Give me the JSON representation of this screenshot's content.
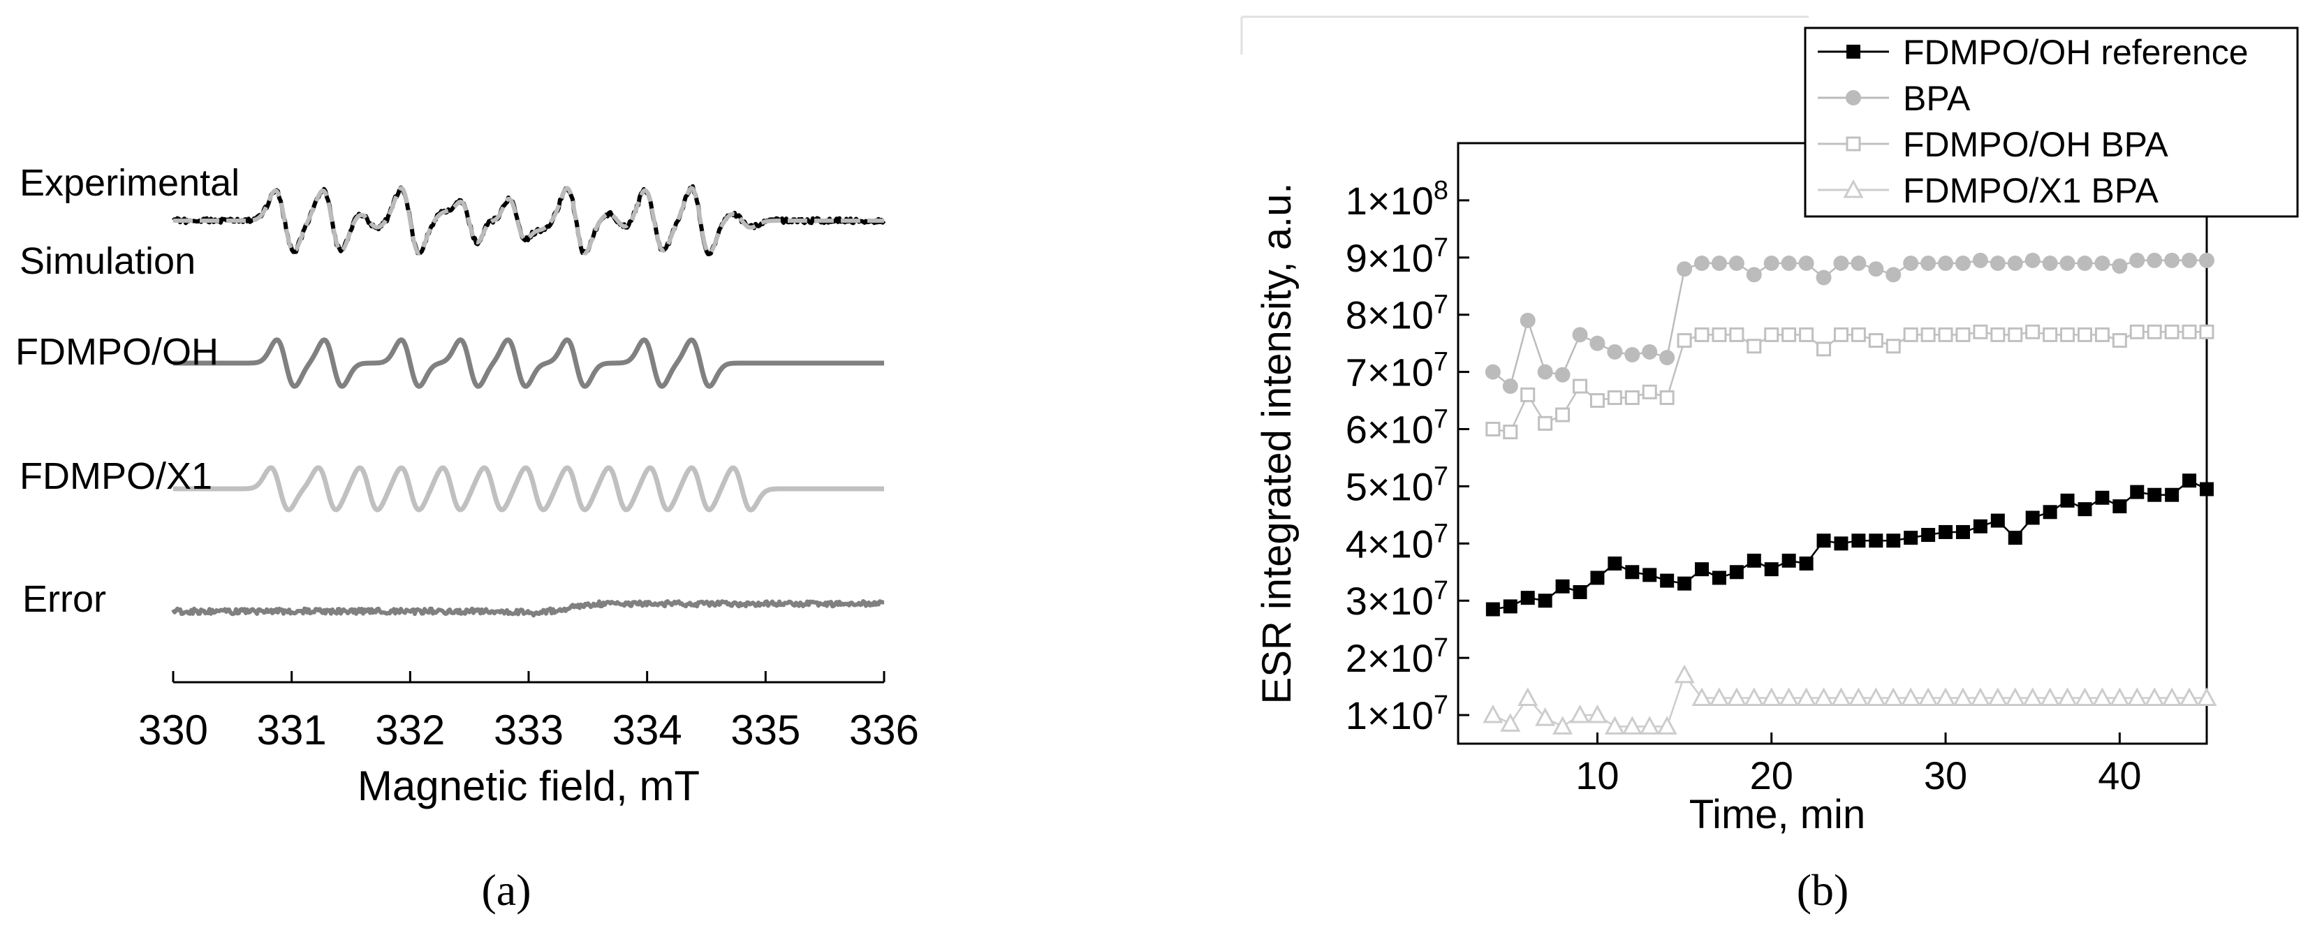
{
  "chart_data": [
    {
      "panel_label": "(a)",
      "type": "line",
      "xlabel": "Magnetic field, mT",
      "ylabel": "",
      "xlim": [
        330,
        336
      ],
      "x_ticks": [
        330,
        331,
        332,
        333,
        334,
        335,
        336
      ],
      "grid": false,
      "legend": "none",
      "series": [
        {
          "name": "Experimental",
          "color": "#000000",
          "style": "solid",
          "offset_rank": 1
        },
        {
          "name": "Simulation",
          "color": "#bbbbbb",
          "style": "dashed",
          "offset_rank": 1
        },
        {
          "name": "FDMPO/OH",
          "color": "#808080",
          "style": "solid",
          "offset_rank": 2
        },
        {
          "name": "FDMPO/X1",
          "color": "#c0c0c0",
          "style": "solid",
          "offset_rank": 3
        },
        {
          "name": "Error",
          "color": "#808080",
          "style": "solid",
          "offset_rank": 4
        }
      ],
      "spectrum_peaks_mT": {
        "FDMPO/OH": [
          330.95,
          331.35,
          332.0,
          332.5,
          332.9,
          333.4,
          334.05,
          334.45
        ],
        "FDMPO/X1": [
          330.9,
          331.3,
          331.65,
          332.0,
          332.35,
          332.7,
          333.05,
          333.4,
          333.75,
          334.1,
          334.45,
          334.8
        ]
      }
    },
    {
      "panel_label": "(b)",
      "type": "line",
      "xlabel": "Time, min",
      "ylabel": "ESR integrated intensity, a.u.",
      "xlim": [
        2,
        45
      ],
      "ylim": [
        5000000,
        110000000
      ],
      "x_ticks": [
        10,
        20,
        30,
        40
      ],
      "y_ticks": [
        {
          "value": 10000000,
          "mantissa": "1",
          "exp": "7"
        },
        {
          "value": 20000000,
          "mantissa": "2",
          "exp": "7"
        },
        {
          "value": 30000000,
          "mantissa": "3",
          "exp": "7"
        },
        {
          "value": 40000000,
          "mantissa": "4",
          "exp": "7"
        },
        {
          "value": 50000000,
          "mantissa": "5",
          "exp": "7"
        },
        {
          "value": 60000000,
          "mantissa": "6",
          "exp": "7"
        },
        {
          "value": 70000000,
          "mantissa": "7",
          "exp": "7"
        },
        {
          "value": 80000000,
          "mantissa": "8",
          "exp": "7"
        },
        {
          "value": 90000000,
          "mantissa": "9",
          "exp": "7"
        },
        {
          "value": 100000000,
          "mantissa": "1",
          "exp": "8"
        }
      ],
      "tick_times": "×10",
      "grid": false,
      "legend": "top-right",
      "x": [
        4,
        5,
        6,
        7,
        8,
        9,
        10,
        11,
        12,
        13,
        14,
        15,
        16,
        17,
        18,
        19,
        20,
        21,
        22,
        23,
        24,
        25,
        26,
        27,
        28,
        29,
        30,
        31,
        32,
        33,
        34,
        35,
        36,
        37,
        38,
        39,
        40,
        41,
        42,
        43,
        44,
        45
      ],
      "series": [
        {
          "name": "FDMPO/OH reference",
          "color": "#000000",
          "marker": "filled-square",
          "values": [
            28.5,
            29,
            30.5,
            30,
            32.5,
            31.5,
            34,
            36.5,
            35,
            34.5,
            33.5,
            33,
            35.5,
            34,
            35,
            37,
            35.5,
            37,
            36.5,
            40.5,
            40,
            40.5,
            40.5,
            40.5,
            41,
            41.5,
            42,
            42,
            43,
            44,
            41,
            44.5,
            45.5,
            47.5,
            46,
            48,
            46.5,
            49,
            48.5,
            48.5,
            51,
            49.5
          ]
        },
        {
          "name": "BPA",
          "color": "#bbbbbb",
          "marker": "filled-circle",
          "values": [
            70,
            67.5,
            79,
            70,
            69.5,
            76.5,
            75,
            73.5,
            73,
            73.5,
            72.5,
            88,
            89,
            89,
            89,
            87,
            89,
            89,
            89,
            86.5,
            89,
            89,
            88,
            87,
            89,
            89,
            89,
            89,
            89.5,
            89,
            89,
            89.5,
            89,
            89,
            89,
            89,
            88.5,
            89.5,
            89.5,
            89.5,
            89.5,
            89.5
          ]
        },
        {
          "name": "FDMPO/OH BPA",
          "color": "#c0c0c0",
          "marker": "open-square",
          "values": [
            60,
            59.5,
            66,
            61,
            62.5,
            67.5,
            65,
            65.5,
            65.5,
            66.5,
            65.5,
            75.5,
            76.5,
            76.5,
            76.5,
            74.5,
            76.5,
            76.5,
            76.5,
            74,
            76.5,
            76.5,
            75.5,
            74.5,
            76.5,
            76.5,
            76.5,
            76.5,
            77,
            76.5,
            76.5,
            77,
            76.5,
            76.5,
            76.5,
            76.5,
            75.5,
            77,
            77,
            77,
            77,
            77
          ]
        },
        {
          "name": "FDMPO/X1 BPA",
          "color": "#cccccc",
          "marker": "open-triangle",
          "values": [
            10,
            8.5,
            13,
            9.5,
            8,
            10,
            10,
            8,
            8,
            8,
            8,
            17,
            13,
            13,
            13,
            13,
            13,
            13,
            13,
            13,
            13,
            13,
            13,
            13,
            13,
            13,
            13,
            13,
            13,
            13,
            13,
            13,
            13,
            13,
            13,
            13,
            13,
            13,
            13,
            13,
            13,
            13
          ],
          "scale": 1000000
        }
      ],
      "scale": 1000000
    }
  ]
}
